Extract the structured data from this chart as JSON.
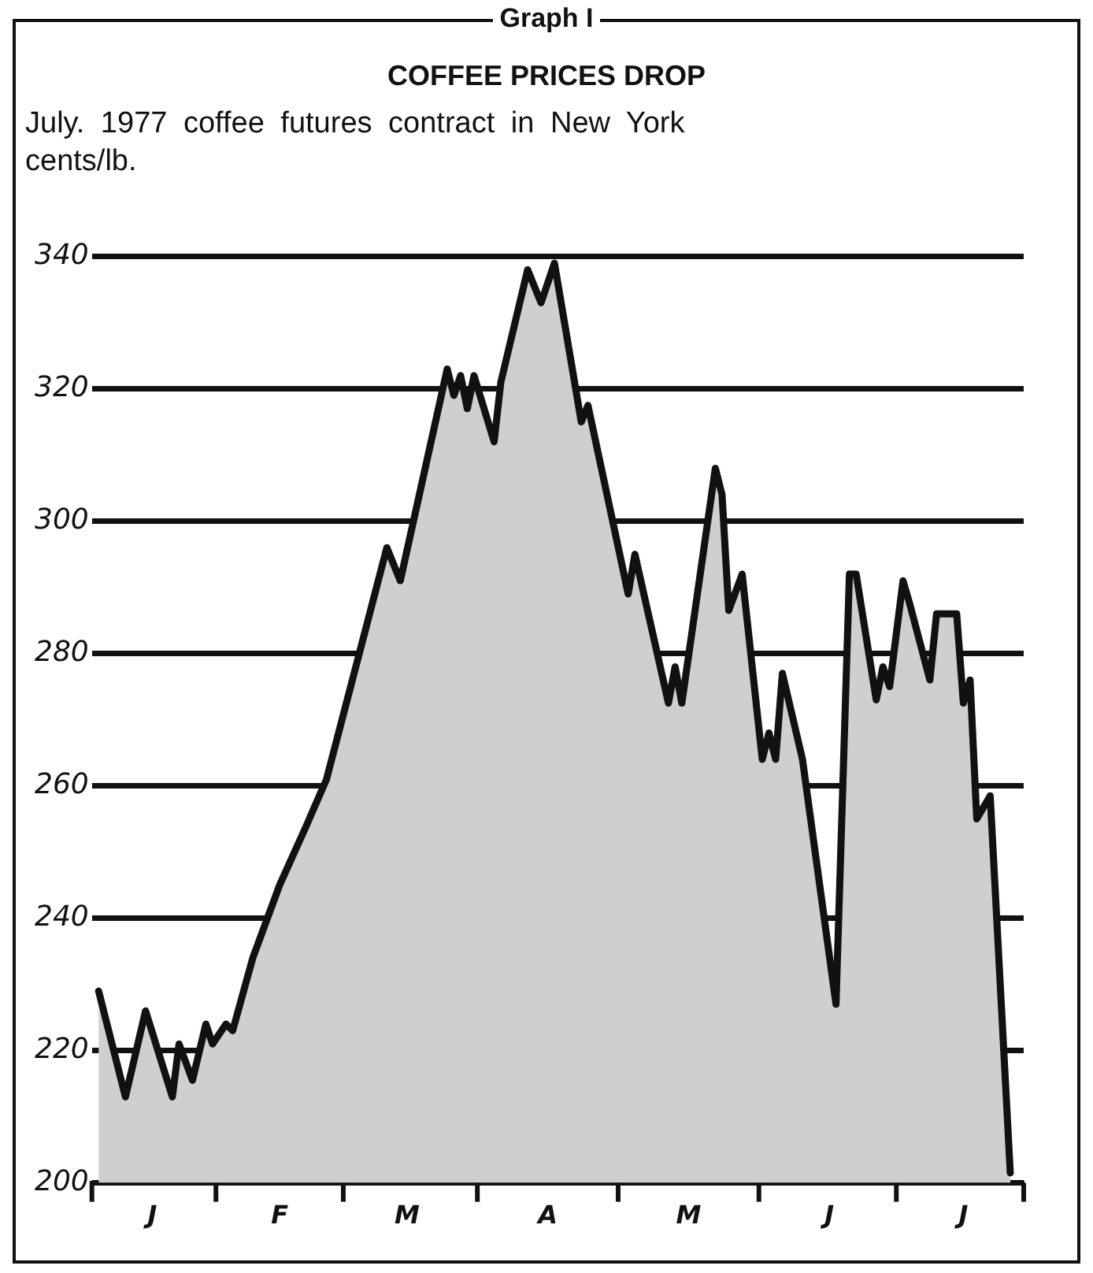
{
  "chart_data": {
    "type": "area",
    "title": "COFFEE PRICES DROP",
    "subtitle": "July. 1977 coffee futures contract in New York",
    "ylabel": "cents/lb.",
    "annotations": [
      "Graph I"
    ],
    "categories": [
      null,
      null,
      null,
      null,
      null,
      null,
      null,
      null,
      null,
      "J",
      null,
      null,
      null,
      null,
      null,
      null,
      null,
      null,
      null,
      null,
      null,
      null,
      null,
      null,
      null,
      null,
      null,
      null,
      "F",
      null,
      null,
      null,
      null,
      null,
      null,
      null,
      null,
      null,
      null,
      null,
      null,
      null,
      null,
      null,
      null,
      null,
      null,
      "M",
      null,
      null,
      null,
      null,
      null,
      null,
      null,
      null,
      null,
      null,
      null,
      null,
      null,
      null,
      null,
      null,
      null,
      null,
      null,
      null,
      "A",
      null,
      null,
      null,
      null,
      null,
      null,
      null,
      null,
      null,
      null,
      null,
      null,
      null,
      null,
      null,
      null,
      null,
      null,
      null,
      null,
      "M",
      null,
      null,
      null,
      null,
      null,
      null,
      null,
      null,
      null,
      null,
      null,
      null,
      null,
      null,
      null,
      null,
      null,
      null,
      null,
      null,
      "J",
      null,
      null,
      null,
      null,
      null,
      null,
      null,
      null,
      null,
      null,
      null,
      null,
      null,
      null,
      null,
      null,
      null,
      null,
      null,
      "J",
      null,
      null,
      null,
      null,
      null,
      null,
      null,
      null,
      null
    ],
    "series": [
      {
        "color": "#111111",
        "values": [
          null,
          229,
          225,
          null,
          null,
          213,
          null,
          null,
          226,
          null,
          null,
          null,
          213,
          221,
          null,
          215.5,
          null,
          224,
          221,
          null,
          224,
          223,
          null,
          null,
          234,
          null,
          null,
          null,
          245,
          null,
          null,
          null,
          254,
          null,
          null,
          261,
          null,
          null,
          null,
          null,
          null,
          null,
          null,
          null,
          296,
          null,
          291,
          null,
          null,
          null,
          null,
          null,
          null,
          323,
          319,
          322,
          317,
          322,
          null,
          null,
          312,
          321,
          null,
          null,
          null,
          338,
          null,
          333,
          null,
          339,
          null,
          null,
          null,
          315,
          317.5,
          null,
          null,
          null,
          null,
          null,
          289,
          295,
          null,
          null,
          null,
          null,
          272.5,
          278,
          272.5,
          null,
          null,
          null,
          null,
          308,
          304,
          286.5,
          null,
          292,
          null,
          null,
          264,
          268,
          264,
          277,
          null,
          null,
          264,
          null,
          null,
          null,
          null,
          227,
          null,
          292,
          292,
          null,
          null,
          273,
          278,
          275,
          283,
          291,
          287.5,
          null,
          null,
          276,
          286,
          null,
          null,
          286,
          272.5,
          276,
          255,
          null,
          258.5,
          null,
          null,
          201.5,
          null,
          null
        ]
      }
    ],
    "ylim": [
      200,
      340
    ],
    "yticks": [
      200,
      220,
      240,
      260,
      280,
      300,
      320,
      340
    ],
    "grid": "y",
    "legend": false,
    "marker": "none",
    "line_style": "solid"
  }
}
